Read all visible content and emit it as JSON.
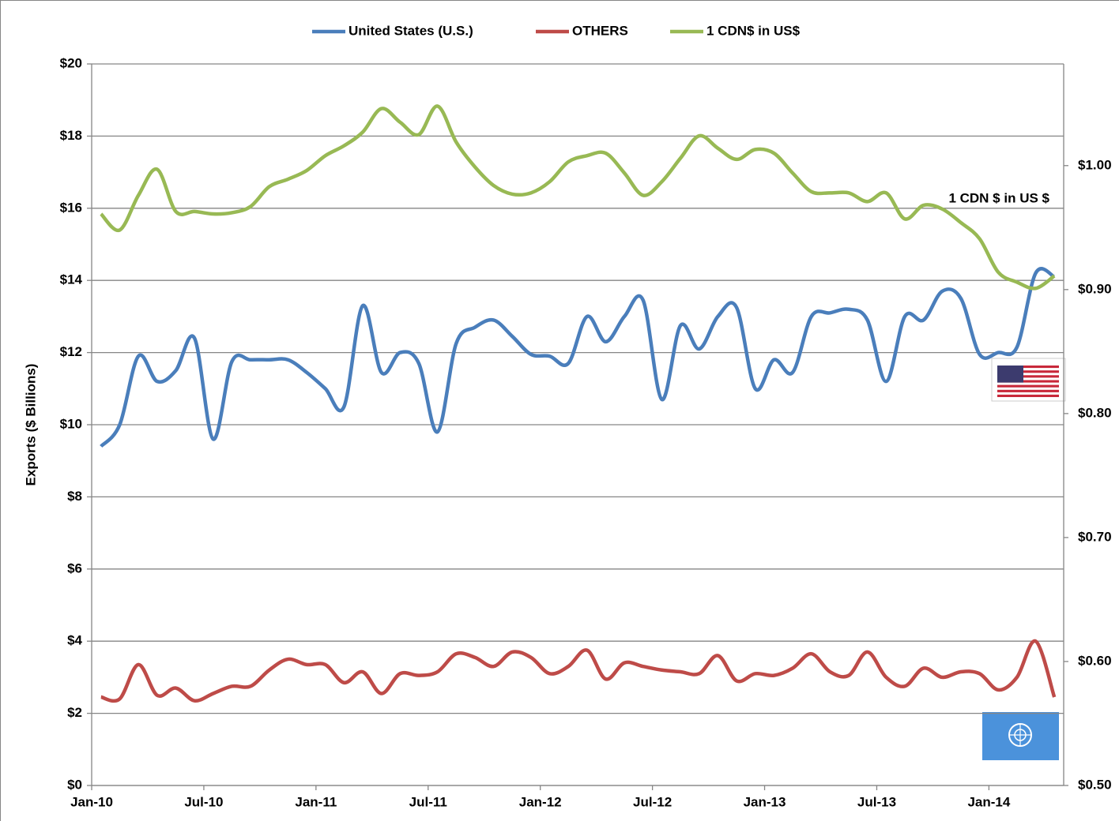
{
  "chart_data": {
    "type": "line",
    "y_label": "Exports  ($ Billions)",
    "annotation": "1 CDN $ in US $",
    "legend": "top",
    "grid": true,
    "categories": [
      "Jan-10",
      null,
      null,
      null,
      null,
      null,
      "Jul-10",
      null,
      null,
      null,
      null,
      null,
      "Jan-11",
      null,
      null,
      null,
      null,
      null,
      "Jul-11",
      null,
      null,
      null,
      null,
      null,
      "Jan-12",
      null,
      null,
      null,
      null,
      null,
      "Jul-12",
      null,
      null,
      null,
      null,
      null,
      "Jan-13",
      null,
      null,
      null,
      null,
      null,
      "Jul-13",
      null,
      null,
      null,
      null,
      null,
      "Jan-14",
      null,
      null,
      null
    ],
    "ylim": [
      0,
      20
    ],
    "yticks": [
      {
        "value": 0,
        "label": "$0"
      },
      {
        "value": 2,
        "label": "$2"
      },
      {
        "value": 4,
        "label": "$4"
      },
      {
        "value": 6,
        "label": "$6"
      },
      {
        "value": 8,
        "label": "$8"
      },
      {
        "value": 10,
        "label": "$10"
      },
      {
        "value": 12,
        "label": "$12"
      },
      {
        "value": 14,
        "label": "$14"
      },
      {
        "value": 16,
        "label": "$16"
      },
      {
        "value": 18,
        "label": "$18"
      },
      {
        "value": 20,
        "label": "$20"
      }
    ],
    "y2lim": [
      0.5,
      1.082
    ],
    "y2ticks": [
      {
        "value": 0.5,
        "label": "$0.50"
      },
      {
        "value": 0.6,
        "label": "$0.60"
      },
      {
        "value": 0.7,
        "label": "$0.70"
      },
      {
        "value": 0.8,
        "label": "$0.80"
      },
      {
        "value": 0.9,
        "label": "$0.90"
      },
      {
        "value": 1.0,
        "label": "$1.00"
      }
    ],
    "series": [
      {
        "name": "United States (U.S.)",
        "color": "#4a7ebb",
        "values": [
          9.4,
          10.0,
          11.9,
          11.2,
          11.5,
          12.4,
          9.6,
          11.75,
          11.8,
          11.8,
          11.8,
          11.45,
          11.0,
          10.5,
          13.3,
          11.45,
          12.0,
          11.7,
          9.8,
          12.25,
          12.7,
          12.9,
          12.45,
          11.95,
          11.9,
          11.7,
          13.0,
          12.3,
          13.0,
          13.45,
          10.7,
          12.75,
          12.1,
          13.0,
          13.25,
          11.0,
          11.8,
          11.45,
          13.0,
          13.1,
          13.2,
          12.9,
          11.2,
          13.0,
          12.9,
          13.7,
          13.5,
          11.95,
          12.0,
          12.15,
          14.2,
          14.1
        ]
      },
      {
        "name": "OTHERS",
        "color": "#be4b48",
        "values": [
          2.45,
          2.4,
          3.35,
          2.5,
          2.7,
          2.35,
          2.55,
          2.75,
          2.75,
          3.2,
          3.5,
          3.35,
          3.35,
          2.85,
          3.15,
          2.55,
          3.1,
          3.05,
          3.15,
          3.65,
          3.55,
          3.3,
          3.7,
          3.55,
          3.1,
          3.3,
          3.75,
          2.95,
          3.4,
          3.3,
          3.2,
          3.15,
          3.1,
          3.6,
          2.9,
          3.1,
          3.05,
          3.25,
          3.65,
          3.15,
          3.05,
          3.7,
          3.0,
          2.75,
          3.25,
          3.0,
          3.15,
          3.1,
          2.65,
          3.0,
          4.0,
          2.45
        ]
      },
      {
        "name": "1 CDN$ in US$",
        "color": "#98b954",
        "axis": "y2",
        "values": [
          0.961,
          0.948,
          0.976,
          0.997,
          0.963,
          0.963,
          0.961,
          0.962,
          0.967,
          0.983,
          0.989,
          0.996,
          1.008,
          1.016,
          1.027,
          1.046,
          1.035,
          1.025,
          1.048,
          1.019,
          0.999,
          0.984,
          0.977,
          0.978,
          0.987,
          1.003,
          1.008,
          1.01,
          0.994,
          0.976,
          0.987,
          1.006,
          1.024,
          1.014,
          1.005,
          1.013,
          1.01,
          0.994,
          0.979,
          0.978,
          0.978,
          0.971,
          0.978,
          0.957,
          0.968,
          0.965,
          0.954,
          0.941,
          0.914,
          0.906,
          0.901,
          0.911
        ]
      }
    ]
  }
}
